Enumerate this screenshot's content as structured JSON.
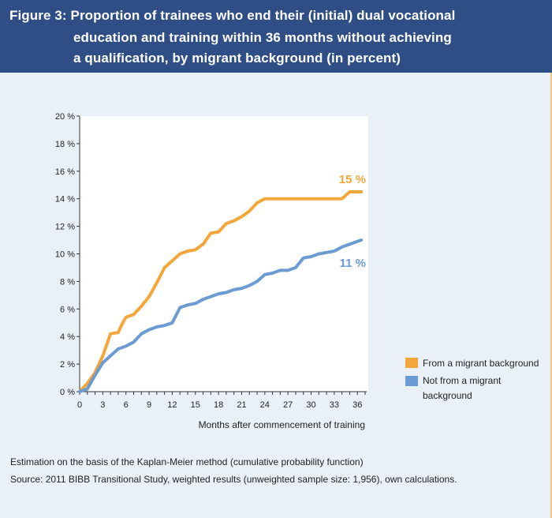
{
  "figure": {
    "title_lines": [
      "Figure 3: Proportion of trainees who end their (initial) dual vocational",
      "education and training within 36 months without achieving",
      "a qualification, by migrant background (in percent)"
    ],
    "notes": [
      "Estimation on the basis of the Kaplan-Meier method (cumulative probability function)",
      "Source: 2011 BIBB Transitional Study, weighted results (unweighted sample size: 1,956), own calculations."
    ],
    "colors": {
      "header_bg": "#2e4e85",
      "panel_bg": "#eaf0f7",
      "orange": "#f3a73b",
      "blue": "#6b9bd2"
    }
  },
  "chart_data": {
    "type": "line",
    "xlabel": "Months after commencement of training",
    "ylabel": "",
    "xlim": [
      0,
      37
    ],
    "ylim": [
      0,
      20
    ],
    "x_ticks": [
      0,
      3,
      6,
      9,
      12,
      15,
      18,
      21,
      24,
      27,
      30,
      33,
      36
    ],
    "y_ticks": [
      0,
      2,
      4,
      6,
      8,
      10,
      12,
      14,
      16,
      18,
      20
    ],
    "y_tick_labels": [
      "0 %",
      "2 %",
      "4 %",
      "6 %",
      "8 %",
      "10 %",
      "12 %",
      "14 %",
      "16 %",
      "18 %",
      "20 %"
    ],
    "grid": false,
    "legend_position": "right",
    "series": [
      {
        "name": "From a migrant background",
        "color": "#f3a73b",
        "end_label": "15 %",
        "points": [
          [
            0,
            0
          ],
          [
            1,
            0.6
          ],
          [
            2,
            1.4
          ],
          [
            3,
            2.6
          ],
          [
            4,
            4.2
          ],
          [
            5,
            4.3
          ],
          [
            5.5,
            4.9
          ],
          [
            6,
            5.4
          ],
          [
            6.5,
            5.5
          ],
          [
            7,
            5.6
          ],
          [
            8,
            6.2
          ],
          [
            9,
            6.9
          ],
          [
            10,
            7.9
          ],
          [
            11,
            9.0
          ],
          [
            12,
            9.5
          ],
          [
            13,
            10.0
          ],
          [
            14,
            10.2
          ],
          [
            15,
            10.3
          ],
          [
            16,
            10.7
          ],
          [
            17,
            11.5
          ],
          [
            18,
            11.6
          ],
          [
            19,
            12.2
          ],
          [
            20,
            12.4
          ],
          [
            21,
            12.7
          ],
          [
            22,
            13.1
          ],
          [
            23,
            13.7
          ],
          [
            24,
            14.0
          ],
          [
            34,
            14.0
          ],
          [
            35,
            14.5
          ],
          [
            36.5,
            14.5
          ]
        ]
      },
      {
        "name": "Not from a migrant background",
        "color": "#6b9bd2",
        "end_label": "11 %",
        "points": [
          [
            0,
            0
          ],
          [
            1,
            0.2
          ],
          [
            2,
            1.2
          ],
          [
            3,
            2.1
          ],
          [
            4,
            2.6
          ],
          [
            5,
            3.1
          ],
          [
            6,
            3.3
          ],
          [
            7,
            3.6
          ],
          [
            8,
            4.2
          ],
          [
            9,
            4.5
          ],
          [
            10,
            4.7
          ],
          [
            11,
            4.8
          ],
          [
            12,
            5.0
          ],
          [
            13,
            6.1
          ],
          [
            14,
            6.3
          ],
          [
            15,
            6.4
          ],
          [
            16,
            6.7
          ],
          [
            17,
            6.9
          ],
          [
            18,
            7.1
          ],
          [
            19,
            7.2
          ],
          [
            20,
            7.4
          ],
          [
            21,
            7.5
          ],
          [
            22,
            7.7
          ],
          [
            23,
            8.0
          ],
          [
            24,
            8.5
          ],
          [
            25,
            8.6
          ],
          [
            26,
            8.8
          ],
          [
            27,
            8.8
          ],
          [
            28,
            9.0
          ],
          [
            29,
            9.7
          ],
          [
            30,
            9.8
          ],
          [
            31,
            10.0
          ],
          [
            32,
            10.1
          ],
          [
            33,
            10.2
          ],
          [
            34,
            10.5
          ],
          [
            35,
            10.7
          ],
          [
            36.5,
            11.0
          ]
        ]
      }
    ]
  }
}
